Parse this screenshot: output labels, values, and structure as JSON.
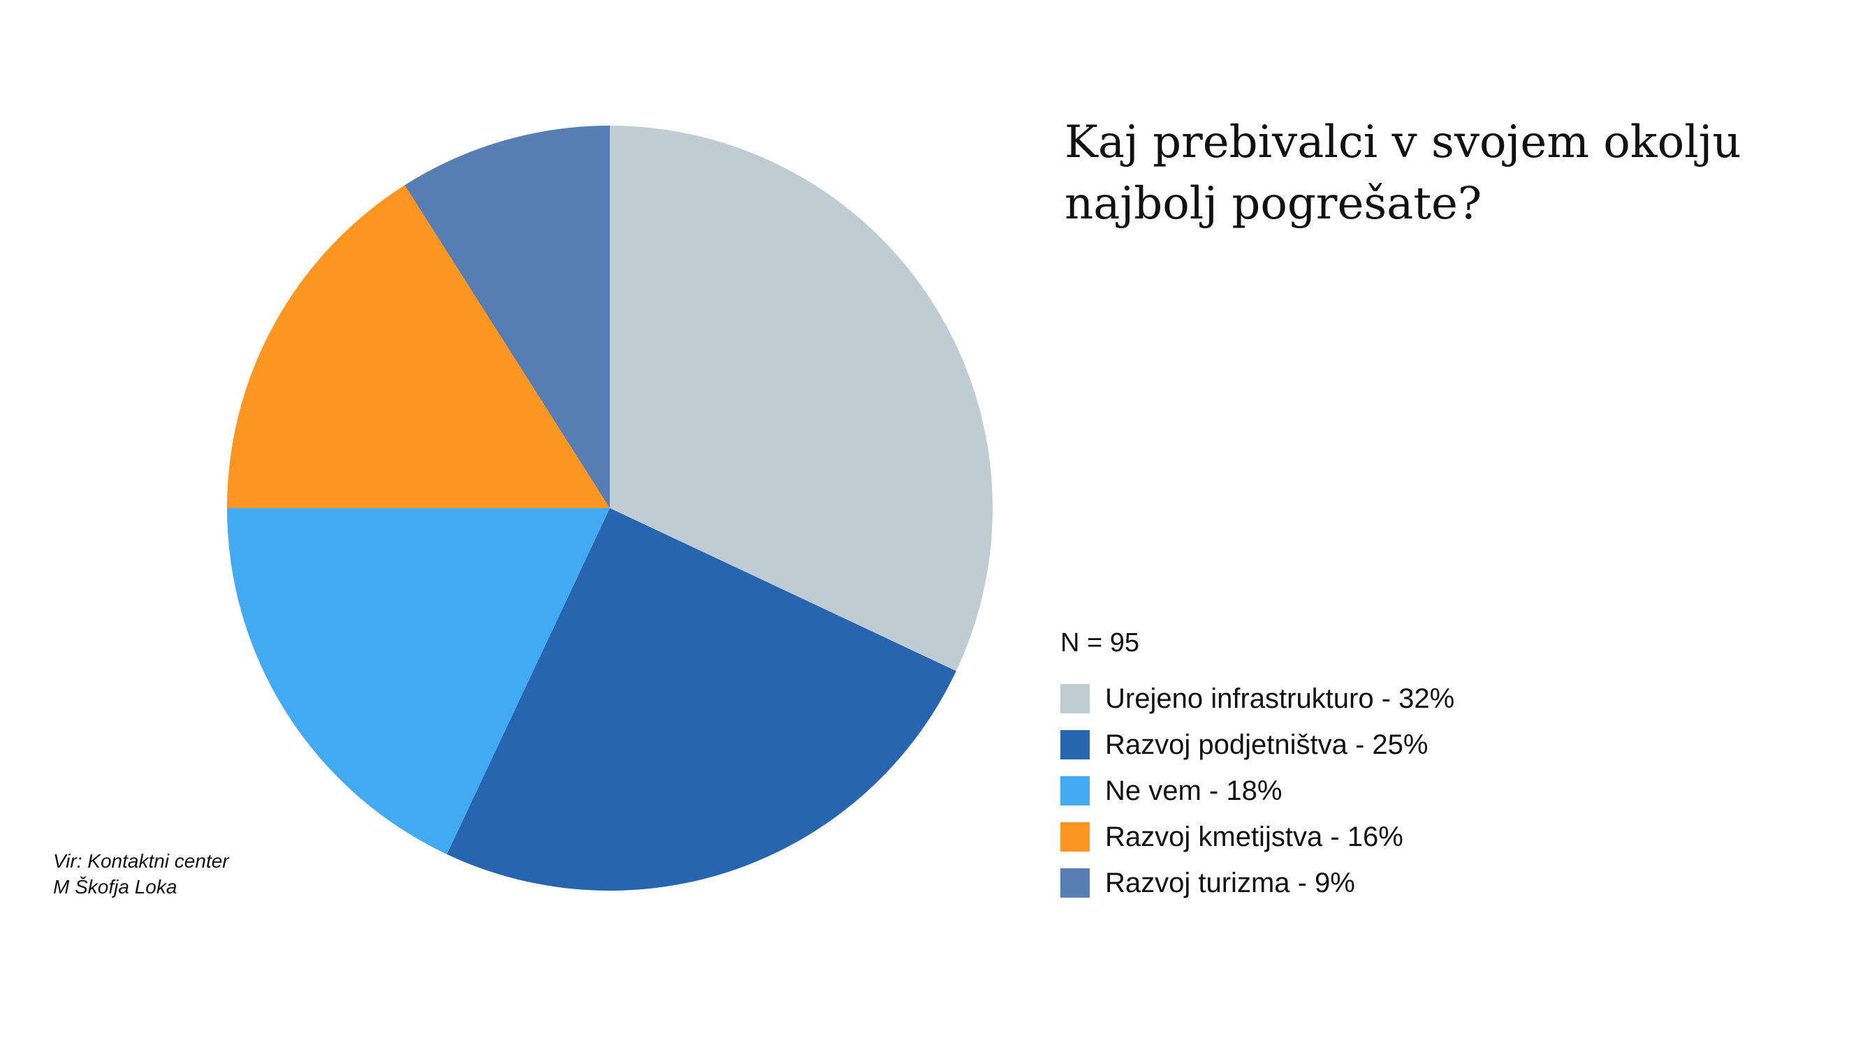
{
  "chart_data": {
    "type": "pie",
    "title": [
      "Kaj prebivalci v svojem okolju",
      "najbolj pogrešate?"
    ],
    "n_label": "N = 95",
    "legend_position": "right",
    "slices": [
      {
        "label": "Urejeno infrastrukturo - 32%",
        "value": 32,
        "color": "#BFCCD4"
      },
      {
        "label": "Razvoj podjetništva - 25%",
        "value": 25,
        "color": "#2765AE"
      },
      {
        "label": "Ne vem - 18%",
        "value": 18,
        "color": "#42A9F3"
      },
      {
        "label": "Razvoj kmetijstva - 16%",
        "value": 16,
        "color": "#FC9621"
      },
      {
        "label": "Razvoj turizma - 9%",
        "value": 9,
        "color": "#567EB4"
      }
    ]
  },
  "source": [
    "Vir: Kontaktni center",
    "M Škofja Loka"
  ]
}
